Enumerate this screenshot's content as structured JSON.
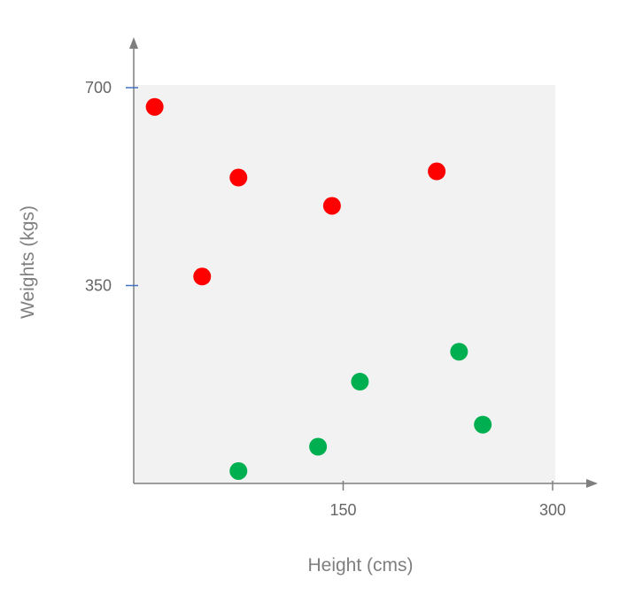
{
  "chart_data": {
    "type": "scatter",
    "title": "",
    "xlabel": "Height (cms)",
    "ylabel": "Weights (kgs)",
    "xlim": [
      0,
      300
    ],
    "ylim": [
      0,
      700
    ],
    "x_ticks": [
      150,
      300
    ],
    "y_ticks": [
      350,
      700
    ],
    "grid": false,
    "legend": "none",
    "plot_background": "#f2f2f2",
    "series": [
      {
        "color": "#ff0000",
        "points": [
          {
            "x": 15,
            "y": 666
          },
          {
            "x": 75,
            "y": 541
          },
          {
            "x": 142,
            "y": 491
          },
          {
            "x": 217,
            "y": 552
          },
          {
            "x": 49,
            "y": 366
          }
        ]
      },
      {
        "color": "#00b050",
        "points": [
          {
            "x": 233,
            "y": 233
          },
          {
            "x": 162,
            "y": 180
          },
          {
            "x": 250,
            "y": 104
          },
          {
            "x": 132,
            "y": 65
          },
          {
            "x": 75,
            "y": 22
          }
        ]
      }
    ]
  }
}
